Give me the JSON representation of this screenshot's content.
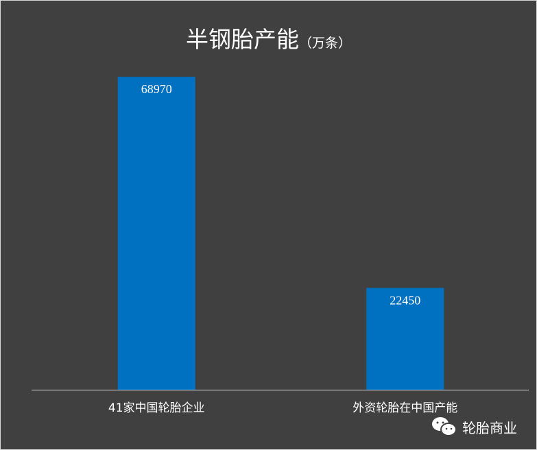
{
  "chart_data": {
    "type": "bar",
    "title": "半钢胎产能",
    "title_unit": "（万条）",
    "categories": [
      "41家中国轮胎企业",
      "外资轮胎在中国产能"
    ],
    "values": [
      68970,
      22450
    ],
    "xlabel": "",
    "ylabel": "",
    "ylim": [
      0,
      80000
    ],
    "grid": false,
    "legend": "none",
    "colors": {
      "bar": "#0070C0",
      "background": "#404040",
      "axis": "#d9d9d9"
    }
  },
  "watermark": {
    "icon": "wechat-icon",
    "text": "轮胎商业"
  }
}
